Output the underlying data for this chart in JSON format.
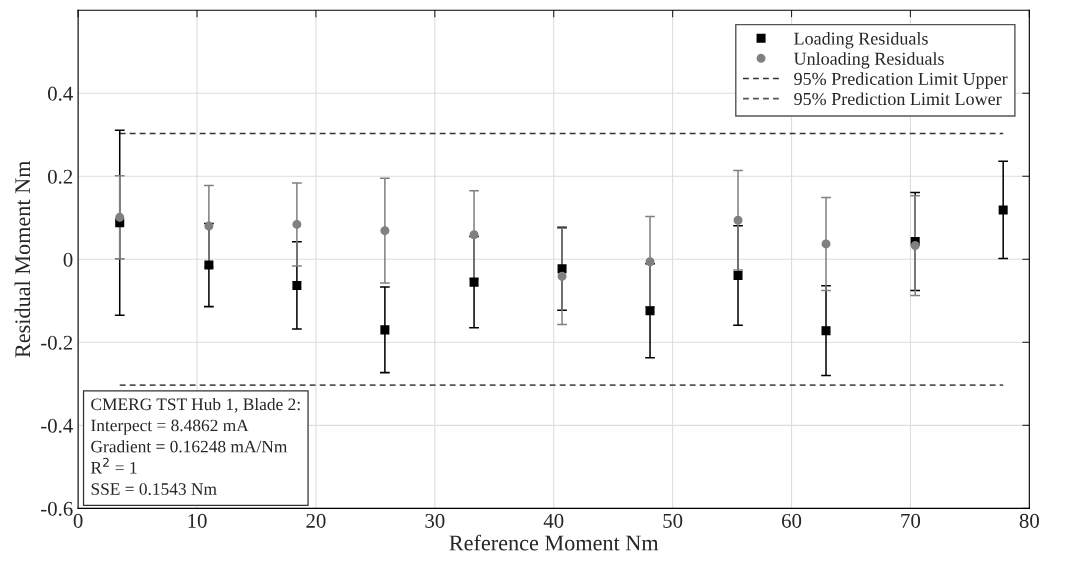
{
  "chart_data": {
    "type": "scatter",
    "xlabel": "Reference Moment Nm",
    "ylabel": "Residual Moment Nm",
    "xlim": [
      0,
      80
    ],
    "xticks": [
      0,
      10,
      20,
      30,
      40,
      50,
      60,
      70,
      80
    ],
    "ylim": [
      -0.6,
      0.6
    ],
    "yticks": [
      -0.6,
      -0.4,
      -0.2,
      0,
      0.2,
      0.4
    ],
    "grid": true,
    "legend": "top right",
    "series": [
      {
        "name": "Loading Residuals",
        "marker": "square",
        "color": "#000000",
        "x": [
          3.5,
          11,
          18.4,
          25.8,
          33.3,
          40.7,
          48.1,
          55.5,
          62.9,
          70.4,
          77.8
        ],
        "values": [
          0.088,
          -0.014,
          -0.063,
          -0.17,
          -0.055,
          -0.023,
          -0.124,
          -0.039,
          -0.172,
          0.043,
          0.119
        ],
        "errors": [
          0.223,
          0.1,
          0.105,
          0.103,
          0.11,
          0.1,
          0.113,
          0.12,
          0.108,
          0.118,
          0.117
        ]
      },
      {
        "name": "Unloading Residuals",
        "marker": "circle",
        "color": "#808080",
        "x": [
          3.5,
          11,
          18.4,
          25.8,
          33.3,
          40.7,
          48.1,
          55.5,
          62.9,
          70.4
        ],
        "values": [
          0.101,
          0.08,
          0.084,
          0.069,
          0.059,
          -0.041,
          -0.006,
          0.094,
          0.037,
          0.033
        ],
        "errors": [
          0.1,
          0.098,
          0.1,
          0.126,
          0.106,
          0.116,
          0.109,
          0.12,
          0.112,
          0.12
        ]
      },
      {
        "name": "95% Predication Limit Upper",
        "type": "line",
        "line_style": "dashed",
        "color": "#333333",
        "x": [
          3.5,
          77.8
        ],
        "values": [
          0.303,
          0.303
        ]
      },
      {
        "name": "95% Prediction Limit Lower",
        "type": "line",
        "line_style": "dashed",
        "color": "#555555",
        "x": [
          3.5,
          77.8
        ],
        "values": [
          -0.303,
          -0.303
        ]
      }
    ],
    "annotations": [
      "CMERG TST Hub 1, Blade 2:\nInterpect = 8.4862 mA\nGradient = 0.16248 mA/Nm\nR$^{2}$ = 1\nSSE = 0.1543 Nm"
    ]
  }
}
